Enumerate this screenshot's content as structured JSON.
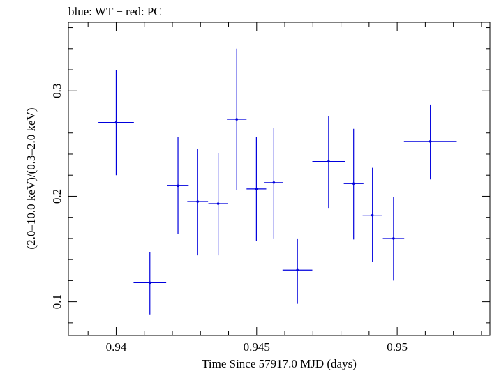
{
  "chart_data": {
    "type": "scatter",
    "title": "blue: WT − red: PC",
    "xlabel": "Time Since 57917.0 MJD (days)",
    "ylabel": "(2.0–10.0 keV)/(0.3–2.0 keV)",
    "xlim": [
      0.9383,
      0.9533
    ],
    "ylim": [
      0.068,
      0.365
    ],
    "xticks": [
      {
        "value": 0.94,
        "label": "0.94"
      },
      {
        "value": 0.945,
        "label": "0.945"
      },
      {
        "value": 0.95,
        "label": "0.95"
      }
    ],
    "yticks": [
      {
        "value": 0.1,
        "label": "0.1"
      },
      {
        "value": 0.2,
        "label": "0.2"
      },
      {
        "value": 0.3,
        "label": "0.3"
      }
    ],
    "x_minor_step": 0.001,
    "y_minor_step": 0.02,
    "grid": false,
    "legend": "none",
    "series": [
      {
        "color": "#0000dd",
        "points": [
          {
            "x": 0.94,
            "xerr": 0.00063,
            "y": 0.27,
            "ylo": 0.22,
            "yhi": 0.32
          },
          {
            "x": 0.9412,
            "xerr": 0.00058,
            "y": 0.118,
            "ylo": 0.088,
            "yhi": 0.147
          },
          {
            "x": 0.9422,
            "xerr": 0.00038,
            "y": 0.21,
            "ylo": 0.164,
            "yhi": 0.256
          },
          {
            "x": 0.9429,
            "xerr": 0.00037,
            "y": 0.195,
            "ylo": 0.144,
            "yhi": 0.245
          },
          {
            "x": 0.94363,
            "xerr": 0.00035,
            "y": 0.193,
            "ylo": 0.144,
            "yhi": 0.241
          },
          {
            "x": 0.94429,
            "xerr": 0.00035,
            "y": 0.273,
            "ylo": 0.206,
            "yhi": 0.34
          },
          {
            "x": 0.94499,
            "xerr": 0.00035,
            "y": 0.207,
            "ylo": 0.158,
            "yhi": 0.256
          },
          {
            "x": 0.94561,
            "xerr": 0.00033,
            "y": 0.213,
            "ylo": 0.16,
            "yhi": 0.265
          },
          {
            "x": 0.94645,
            "xerr": 0.00053,
            "y": 0.13,
            "ylo": 0.098,
            "yhi": 0.16
          },
          {
            "x": 0.94756,
            "xerr": 0.00058,
            "y": 0.233,
            "ylo": 0.189,
            "yhi": 0.276
          },
          {
            "x": 0.94845,
            "xerr": 0.00035,
            "y": 0.212,
            "ylo": 0.159,
            "yhi": 0.264
          },
          {
            "x": 0.94912,
            "xerr": 0.00035,
            "y": 0.182,
            "ylo": 0.138,
            "yhi": 0.227
          },
          {
            "x": 0.94987,
            "xerr": 0.00038,
            "y": 0.16,
            "ylo": 0.12,
            "yhi": 0.199
          },
          {
            "x": 0.95118,
            "xerr": 0.00094,
            "y": 0.252,
            "ylo": 0.216,
            "yhi": 0.287
          }
        ]
      }
    ]
  }
}
